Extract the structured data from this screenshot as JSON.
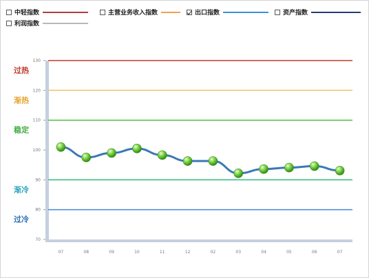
{
  "legend": [
    {
      "label": "中轻指数",
      "checked": false,
      "color": "#b33a3a"
    },
    {
      "label": "主营业务收入指数",
      "checked": false,
      "color": "#f2a24a"
    },
    {
      "label": "出口指数",
      "checked": true,
      "color": "#3d8fd6"
    },
    {
      "label": "资产指数",
      "checked": false,
      "color": "#233b78"
    },
    {
      "label": "利润指数",
      "checked": false,
      "color": "#b8b8b8"
    }
  ],
  "zones": [
    {
      "label": "过热",
      "color": "#c0392b",
      "value": 130
    },
    {
      "label": "渐热",
      "color": "#e6a52e",
      "value": 120
    },
    {
      "label": "稳定",
      "color": "#3fae3f",
      "value": 110
    },
    {
      "label": "渐冷",
      "color": "#2aa3c0",
      "value": 90
    },
    {
      "label": "过冷",
      "color": "#2a6fb8",
      "value": 80
    }
  ],
  "chart_data": {
    "type": "line",
    "categories": [
      "07",
      "08",
      "09",
      "10",
      "11",
      "12",
      "02",
      "03",
      "04",
      "05",
      "06",
      "07"
    ],
    "series": [
      {
        "name": "出口指数",
        "values": [
          101,
          97.5,
          99,
          100.5,
          98.3,
          96.3,
          96.3,
          92.2,
          93.6,
          94.1,
          94.6,
          93.1
        ]
      }
    ],
    "yticks": [
      70,
      80,
      90,
      100,
      110,
      120,
      130
    ],
    "ylim": [
      70,
      130
    ],
    "reference_lines": [
      {
        "value": 130,
        "color": "#c0392b"
      },
      {
        "value": 120,
        "color": "#f2c46b"
      },
      {
        "value": 110,
        "color": "#5cc04a"
      },
      {
        "value": 90,
        "color": "#3cbf8a"
      },
      {
        "value": 80,
        "color": "#4a90d9"
      }
    ],
    "line_color": "#3a78b5",
    "marker_color": "#5cc02e"
  }
}
